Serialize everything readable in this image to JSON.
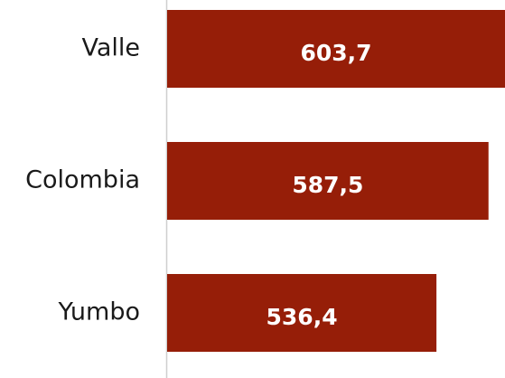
{
  "chart_data": {
    "type": "bar",
    "orientation": "horizontal",
    "categories": [
      "Valle",
      "Colombia",
      "Yumbo"
    ],
    "values": [
      603.7,
      587.5,
      536.4
    ],
    "value_labels": [
      "603,7",
      "587,5",
      "536,4"
    ],
    "color": "#961e08",
    "xlim": [
      272,
      603.7
    ]
  }
}
